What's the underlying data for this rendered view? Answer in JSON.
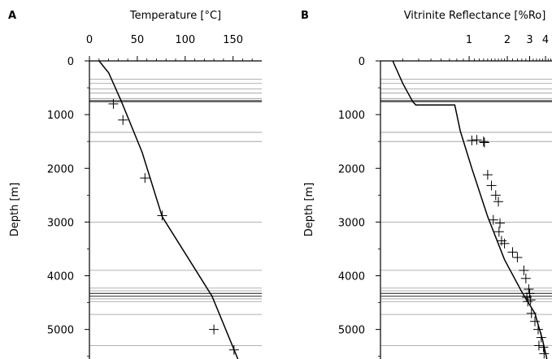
{
  "chart_data": [
    {
      "type": "line",
      "panel_label": "A",
      "title": "Temperature [°C]",
      "xlabel": "Temperature [°C]",
      "ylabel": "Depth [m]",
      "x_axis_position": "top",
      "xlim": [
        0,
        180
      ],
      "ylim": [
        0,
        5550
      ],
      "y_inverted": true,
      "xticks": [
        0,
        50,
        100,
        150
      ],
      "yticks": [
        0,
        1000,
        2000,
        3000,
        4000,
        5000
      ],
      "horizon_depths": [
        340,
        420,
        520,
        600,
        700,
        740,
        760,
        1330,
        1500,
        3000,
        3900,
        4230,
        4280,
        4330,
        4380,
        4430,
        4480,
        4720,
        5300
      ],
      "series": [
        {
          "kind": "line",
          "points": [
            [
              10,
              0
            ],
            [
              20,
              220
            ],
            [
              33,
              740
            ],
            [
              55,
              1700
            ],
            [
              76,
              2900
            ],
            [
              128,
              4380
            ],
            [
              155,
              5550
            ]
          ]
        },
        {
          "kind": "markers",
          "marker": "plus",
          "points": [
            [
              25,
              800
            ],
            [
              35,
              1100
            ],
            [
              58,
              2180
            ],
            [
              76,
              2880
            ],
            [
              130,
              5000
            ],
            [
              151,
              5380
            ]
          ]
        }
      ],
      "grid": false,
      "legend": "none"
    },
    {
      "type": "line",
      "panel_label": "B",
      "title": "Vitrinite Reflectance [%Ro]",
      "xlabel": "Vitrinite Reflectance [%Ro]",
      "ylabel": "Depth [m]",
      "x_axis_position": "top",
      "x_scale": "log",
      "xlim": [
        0.2,
        4.5
      ],
      "ylim": [
        0,
        5550
      ],
      "y_inverted": true,
      "xticks": [
        1,
        2,
        3,
        4
      ],
      "yticks": [
        0,
        1000,
        2000,
        3000,
        4000,
        5000
      ],
      "horizon_depths": [
        340,
        420,
        520,
        600,
        700,
        740,
        760,
        1330,
        1500,
        3000,
        3900,
        4230,
        4280,
        4330,
        4380,
        4430,
        4480,
        4720,
        5300
      ],
      "series": [
        {
          "kind": "line",
          "points": [
            [
              0.25,
              0
            ],
            [
              0.3,
              420
            ],
            [
              0.36,
              760
            ],
            [
              0.38,
              820
            ],
            [
              0.77,
              820
            ],
            [
              0.85,
              1300
            ],
            [
              1.05,
              2000
            ],
            [
              1.4,
              2900
            ],
            [
              1.9,
              3700
            ],
            [
              2.6,
              4300
            ],
            [
              3.3,
              4700
            ],
            [
              3.8,
              5200
            ],
            [
              4.1,
              5550
            ]
          ]
        },
        {
          "kind": "markers",
          "marker": "plus",
          "points": [
            [
              1.05,
              1480
            ],
            [
              1.15,
              1470
            ],
            [
              1.3,
              1500
            ],
            [
              1.32,
              1520
            ],
            [
              1.4,
              2120
            ],
            [
              1.5,
              2320
            ],
            [
              1.62,
              2500
            ],
            [
              1.7,
              2620
            ],
            [
              1.55,
              2960
            ],
            [
              1.75,
              3020
            ],
            [
              1.72,
              3180
            ],
            [
              1.8,
              3350
            ],
            [
              1.9,
              3400
            ],
            [
              2.2,
              3560
            ],
            [
              2.4,
              3660
            ],
            [
              2.7,
              3900
            ],
            [
              2.8,
              4050
            ],
            [
              2.95,
              4250
            ],
            [
              3.0,
              4330
            ],
            [
              2.85,
              4400
            ],
            [
              3.05,
              4450
            ],
            [
              2.9,
              4480
            ],
            [
              3.1,
              4700
            ],
            [
              3.3,
              4850
            ],
            [
              3.5,
              5000
            ],
            [
              3.7,
              5150
            ],
            [
              3.55,
              5300
            ],
            [
              3.85,
              5330
            ],
            [
              3.9,
              5450
            ]
          ]
        }
      ],
      "grid": false,
      "legend": "none"
    }
  ]
}
